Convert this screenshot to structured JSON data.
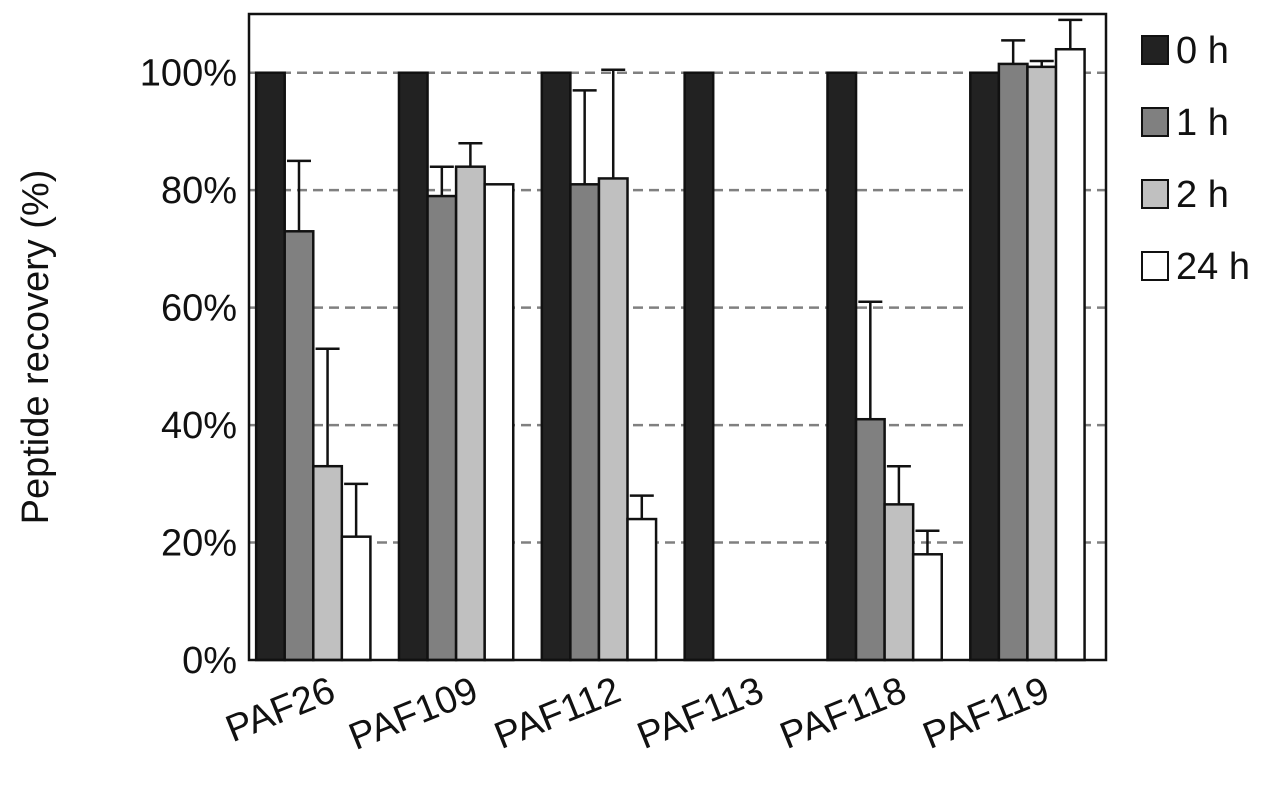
{
  "chart_data": {
    "type": "bar",
    "ylabel": "Peptide recovery (%)",
    "xlabel": "",
    "title": "",
    "ylim": [
      0,
      110
    ],
    "yticks": [
      0,
      20,
      40,
      60,
      80,
      100
    ],
    "ytick_labels": [
      "0%",
      "20%",
      "40%",
      "60%",
      "80%",
      "100%"
    ],
    "grid": "horizontal dashed",
    "legend_position": "right",
    "categories": [
      "PAF26",
      "PAF109",
      "PAF112",
      "PAF113",
      "PAF118",
      "PAF119"
    ],
    "series": [
      {
        "name": "0 h",
        "color": "#222222",
        "values": [
          100,
          100,
          100,
          100,
          100,
          100
        ],
        "errors": [
          0,
          0,
          0,
          0,
          0,
          0
        ]
      },
      {
        "name": "1 h",
        "color": "#808080",
        "values": [
          73,
          79,
          81,
          0,
          41,
          101.5
        ],
        "errors": [
          12,
          5,
          16,
          0,
          20,
          4
        ]
      },
      {
        "name": "2 h",
        "color": "#c0c0c0",
        "values": [
          33,
          84,
          82,
          0,
          26.5,
          101
        ],
        "errors": [
          20,
          4,
          18.5,
          0,
          6.5,
          1
        ]
      },
      {
        "name": "24 h",
        "color": "#ffffff",
        "values": [
          21,
          81,
          24,
          0,
          18,
          104
        ],
        "errors": [
          9,
          0,
          4,
          0,
          4,
          5
        ]
      }
    ]
  }
}
